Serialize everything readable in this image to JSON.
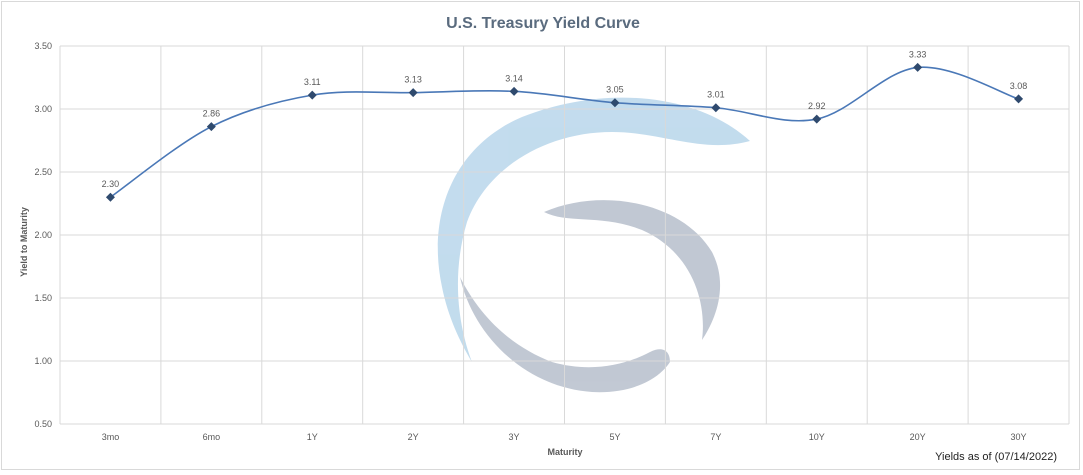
{
  "chart_data": {
    "type": "line",
    "title": "U.S. Treasury Yield Curve",
    "xlabel": "Maturity",
    "ylabel": "Yield to Maturity",
    "categories": [
      "3mo",
      "6mo",
      "1Y",
      "2Y",
      "3Y",
      "5Y",
      "7Y",
      "10Y",
      "20Y",
      "30Y"
    ],
    "series": [
      {
        "name": "Yield",
        "values": [
          2.3,
          2.86,
          3.11,
          3.13,
          3.14,
          3.05,
          3.01,
          2.92,
          3.33,
          3.08
        ],
        "labels": [
          "2.30",
          "2.86",
          "3.11",
          "3.13",
          "3.14",
          "3.05",
          "3.01",
          "2.92",
          "3.33",
          "3.08"
        ]
      }
    ],
    "ylim": [
      0.5,
      3.5
    ],
    "yticks": [
      "0.50",
      "1.00",
      "1.50",
      "2.00",
      "2.50",
      "3.00",
      "3.50"
    ],
    "grid": true,
    "legend": "none",
    "annotations": [
      "Yields as of (07/14/2022)"
    ],
    "colors": {
      "line": "#4a78b7",
      "marker": "#2f4a6e",
      "grid": "#d9d9d9",
      "watermark_blue": "#b8d6eb",
      "watermark_gray": "#b7bfcc"
    }
  }
}
